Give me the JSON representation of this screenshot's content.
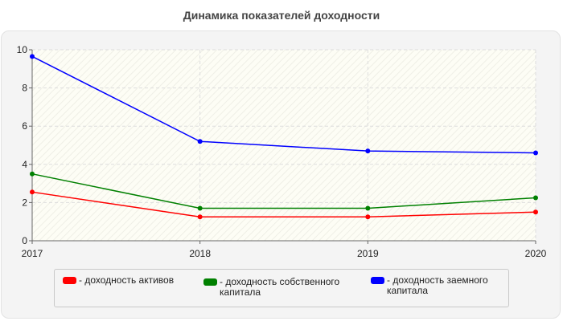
{
  "chart_data": {
    "type": "line",
    "title": "Динамика показателей доходности",
    "x": [
      "2017",
      "2018",
      "2019",
      "2020"
    ],
    "ylim": [
      0,
      10
    ],
    "yticks": [
      "0",
      "2",
      "4",
      "6",
      "8",
      "10"
    ],
    "grid": true,
    "legend_position": "bottom",
    "series": [
      {
        "name": "- доходность активов",
        "color": "#ff0000",
        "values": [
          2.55,
          1.25,
          1.25,
          1.5
        ]
      },
      {
        "name": "- доходность собственного капитала",
        "color": "#008000",
        "values": [
          3.5,
          1.7,
          1.7,
          2.25
        ]
      },
      {
        "name": "- доходность заемного капитала",
        "color": "#0000ff",
        "values": [
          9.65,
          5.2,
          4.7,
          4.6
        ]
      }
    ]
  }
}
